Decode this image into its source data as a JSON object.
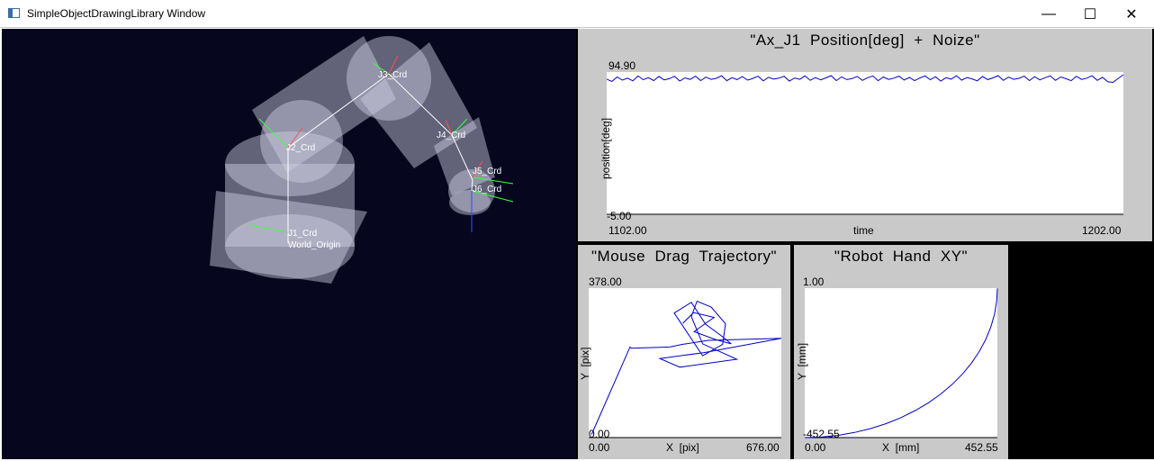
{
  "window": {
    "title": "SimpleObjectDrawingLibrary Window",
    "minimize_glyph": "—",
    "maximize_glyph": "☐",
    "close_glyph": "✕"
  },
  "scene": {
    "frame_labels": [
      "J3_Crd",
      "J2_Crd",
      "J4_Crd",
      "J5_Crd",
      "J6_Crd",
      "J1_Crd",
      "World_Origin"
    ]
  },
  "chart_data": [
    {
      "type": "line",
      "title": "\"Ax_J1  Position[deg]  +  Noize\"",
      "xlabel": "time",
      "ylabel": "position[deg]",
      "xlim": [
        1102.0,
        1202.0
      ],
      "ylim": [
        -5.0,
        94.9
      ],
      "x_min_label": "1102.00",
      "x_max_label": "1202.00",
      "y_min_label": "-5.00",
      "y_max_label": "94.90",
      "series": [
        {
          "color": "#0000c8",
          "values": [
            89.9,
            88.3,
            91.4,
            89.2,
            90.6,
            88.7,
            92.1,
            89.5,
            90.9,
            88.9,
            91.8,
            89.4,
            90.2,
            91.9,
            88.6,
            90.8,
            89.7,
            92.0,
            88.9,
            91.3,
            89.8,
            90.5,
            92.3,
            88.8,
            90.9,
            89.6,
            91.7,
            89.2,
            90.4,
            92.0,
            88.7,
            91.2,
            89.9,
            90.6,
            91.9,
            88.5,
            90.7,
            89.8,
            92.2,
            89.1,
            91.0,
            89.4,
            90.8,
            92.4,
            88.9,
            91.5,
            89.6,
            90.3,
            91.8,
            89.0,
            90.9,
            92.1,
            88.8,
            91.4,
            89.7,
            90.6,
            92.0,
            89.3,
            91.1,
            88.9,
            90.7,
            92.2,
            89.5,
            91.6,
            88.6,
            90.9,
            89.9,
            92.3,
            89.2,
            91.0,
            90.1,
            88.7,
            91.8,
            89.6,
            90.8,
            92.4,
            89.0,
            91.3,
            89.8,
            90.5,
            92.0,
            88.9,
            91.6,
            89.4,
            90.9,
            92.2,
            89.1,
            91.4,
            90.2,
            88.8,
            91.9,
            89.7,
            90.6,
            92.3,
            89.0,
            91.2,
            88.1,
            87.6,
            90.4,
            93.0
          ]
        }
      ]
    },
    {
      "type": "line",
      "title": "\"Mouse  Drag  Trajectory\"",
      "xlabel": "X  [pix]",
      "ylabel": "Y  [pix]",
      "xlim": [
        0.0,
        676.0
      ],
      "ylim": [
        0.0,
        378.0
      ],
      "x_min_label": "0.00",
      "x_max_label": "676.00",
      "y_min_label": "0.00",
      "y_max_label": "378.00",
      "series": [
        {
          "color": "#0000c8",
          "x": [
            10,
            145,
            150,
            285,
            330,
            420,
            676,
            405,
            250,
            320,
            520,
            400,
            360,
            380,
            430,
            480,
            470,
            400,
            300,
            360,
            410,
            470,
            500,
            445,
            370,
            410,
            440,
            368,
            330
          ],
          "y": [
            8,
            229,
            226,
            229,
            236,
            246,
            251,
            215,
            200,
            178,
            198,
            237,
            306,
            345,
            330,
            288,
            236,
            207,
            315,
            342,
            287,
            255,
            237,
            248,
            268,
            289,
            304,
            316,
            289
          ]
        }
      ]
    },
    {
      "type": "line",
      "title": "\"Robot  Hand  XY\"",
      "xlabel": "X  [mm]",
      "ylabel": "Y  [mm]",
      "xlim": [
        0.0,
        452.55
      ],
      "ylim": [
        -452.55,
        1.0
      ],
      "x_min_label": "0.00",
      "x_max_label": "452.55",
      "y_min_label": "-452.55",
      "y_max_label": "1.00",
      "series": [
        {
          "color": "#0000c8",
          "x": [
            0,
            39.4,
            78.6,
            117.1,
            154.8,
            191.3,
            226.3,
            259.5,
            290.8,
            320.0,
            346.7,
            370.7,
            391.9,
            410.1,
            425.3,
            437.1,
            445.7,
            450.8,
            452.55
          ],
          "y": [
            -452.55,
            -450.8,
            -445.7,
            -437.1,
            -425.3,
            -410.1,
            -391.9,
            -370.7,
            -346.7,
            -320.0,
            -290.8,
            -259.5,
            -226.3,
            -191.3,
            -154.8,
            -117.1,
            -78.6,
            -39.4,
            0
          ]
        }
      ]
    }
  ]
}
